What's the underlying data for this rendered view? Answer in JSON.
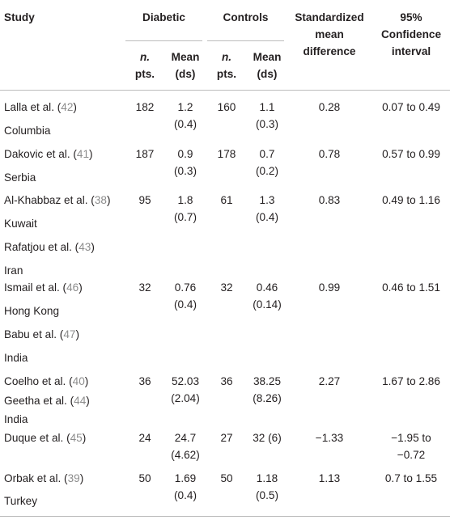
{
  "header": {
    "study": "Study",
    "diabetic": "Diabetic",
    "controls": "Controls",
    "smd_lines": [
      "Standardized",
      "mean",
      "difference"
    ],
    "ci_lines": [
      "95%",
      "Confidence",
      "interval"
    ],
    "n_lines": [
      "n.",
      "pts."
    ],
    "mean_lines": [
      "Mean",
      "(ds)"
    ]
  },
  "rows": [
    {
      "lines": [
        {
          "name": "Lalla et al. (",
          "ref": "42",
          "close": ")"
        },
        {
          "text": "Columbia"
        }
      ],
      "d_n": "182",
      "d_mean": [
        "1.2",
        "(0.4)"
      ],
      "c_n": "160",
      "c_mean": [
        "1.1",
        "(0.3)"
      ],
      "smd": "0.28",
      "ci": [
        "0.07 to 0.49"
      ]
    },
    {
      "lines": [
        {
          "name": "Dakovic et al. (",
          "ref": "41",
          "close": ")"
        },
        {
          "text": "Serbia"
        }
      ],
      "d_n": "187",
      "d_mean": [
        "0.9",
        "(0.3)"
      ],
      "c_n": "178",
      "c_mean": [
        "0.7",
        "(0.2)"
      ],
      "smd": "0.78",
      "ci": [
        "0.57 to 0.99"
      ]
    },
    {
      "lines": [
        {
          "name": "Al-Khabbaz et al. (",
          "ref": "38",
          "close": ")"
        },
        {
          "text": "Kuwait"
        },
        {
          "name": "Rafatjou et al. (",
          "ref": "43",
          "close": ")"
        },
        {
          "text": "Iran"
        }
      ],
      "d_n": "95",
      "d_mean": [
        "1.8",
        "(0.7)"
      ],
      "c_n": "61",
      "c_mean": [
        "1.3",
        "(0.4)"
      ],
      "smd": "0.83",
      "ci": [
        "0.49 to 1.16"
      ]
    },
    {
      "lines": [
        {
          "name": "Ismail et al. (",
          "ref": "46",
          "close": ")"
        },
        {
          "text": "Hong Kong"
        },
        {
          "name": "Babu et al. (",
          "ref": "47",
          "close": ")"
        },
        {
          "text": "India"
        }
      ],
      "d_n": "32",
      "d_mean": [
        "0.76",
        "(0.4)"
      ],
      "c_n": "32",
      "c_mean": [
        "0.46",
        "(0.14)"
      ],
      "smd": "0.99",
      "ci": [
        "0.46 to 1.51"
      ]
    },
    {
      "lines": [
        {
          "name": "Coelho et al. (",
          "ref": "40",
          "close": ")"
        },
        {
          "name": "Geetha et al. (",
          "ref": "44",
          "close": ")"
        },
        {
          "text": "India"
        }
      ],
      "d_n": "36",
      "d_mean": [
        "52.03",
        "(2.04)"
      ],
      "c_n": "36",
      "c_mean": [
        "38.25",
        "(8.26)"
      ],
      "smd": "2.27",
      "ci": [
        "1.67 to 2.86"
      ]
    },
    {
      "lines": [
        {
          "name": "Duque et al. (",
          "ref": "45",
          "close": ")"
        }
      ],
      "d_n": "24",
      "d_mean": [
        "24.7",
        "(4.62)"
      ],
      "c_n": "27",
      "c_mean": [
        "32 (6)"
      ],
      "smd": "−1.33",
      "ci": [
        "−1.95 to",
        "−0.72"
      ]
    },
    {
      "lines": [
        {
          "name": "Orbak et al. (",
          "ref": "39",
          "close": ")"
        },
        {
          "text": "Turkey"
        }
      ],
      "d_n": "50",
      "d_mean": [
        "1.69",
        "(0.4)"
      ],
      "c_n": "50",
      "c_mean": [
        "1.18",
        "(0.5)"
      ],
      "smd": "1.13",
      "ci": [
        "0.7 to 1.55"
      ]
    }
  ]
}
